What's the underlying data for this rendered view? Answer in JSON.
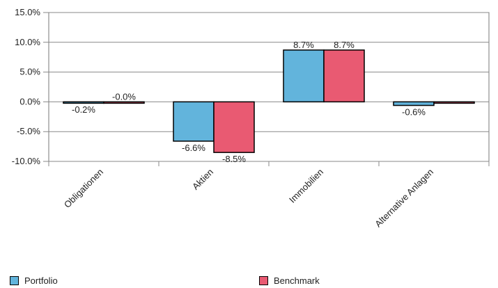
{
  "chart_data": {
    "type": "bar",
    "categories": [
      "Obligationen",
      "Aktien",
      "Immobilien",
      "Alternative Anlagen"
    ],
    "series": [
      {
        "name": "Portfolio",
        "values": [
          -0.2,
          -6.6,
          8.7,
          -0.6
        ],
        "labels": [
          "-0.2%",
          "-6.6%",
          "8.7%",
          "-0.6%"
        ],
        "color": "#62b4dc"
      },
      {
        "name": "Benchmark",
        "values": [
          -0.0,
          -8.5,
          8.7,
          0.0
        ],
        "labels": [
          "-0.0%",
          "-8.5%",
          "8.7%",
          ""
        ],
        "color": "#e95a72"
      }
    ],
    "yticks": [
      "15.0%",
      "10.0%",
      "5.0%",
      "0.0%",
      "-5.0%",
      "-10.0%"
    ],
    "ytick_values": [
      15,
      10,
      5,
      0,
      -5,
      -10
    ],
    "ylim": [
      -10,
      15
    ],
    "grid": "horizontal",
    "legend_position": "bottom"
  }
}
